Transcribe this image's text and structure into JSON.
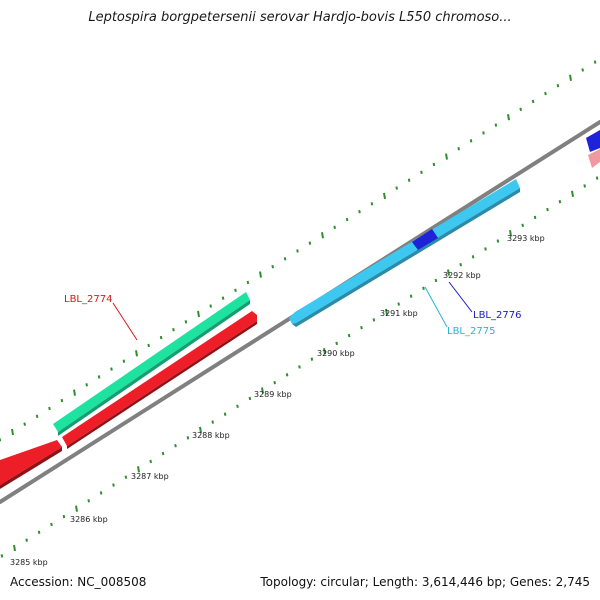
{
  "title": "Leptospira borgpetersenii serovar Hardjo-bovis L550 chromoso...",
  "footer": {
    "accession": "Accession: NC_008508",
    "summary": "Topology: circular; Length: 3,614,446 bp; Genes: 2,745"
  },
  "colors": {
    "backbone": "#808080",
    "tick": "#2f8f2f",
    "gene_green": "#1ee3a0",
    "gene_red": "#ee1e28",
    "gene_lightblue": "#3cc8f0",
    "gene_blue": "#1e22d8",
    "gene_pink": "#f09aa0",
    "label_red": "#d81818",
    "label_cyan": "#28b4dc",
    "label_blue": "#1a1acc"
  },
  "kbp_labels": [
    "3285 kbp",
    "3286 kbp",
    "3287 kbp",
    "3288 kbp",
    "3289 kbp",
    "3290 kbp",
    "3291 kbp",
    "3292 kbp",
    "3293 kbp"
  ],
  "gene_labels": [
    "LBL_2774",
    "LBL_2775",
    "LBL_2776"
  ]
}
